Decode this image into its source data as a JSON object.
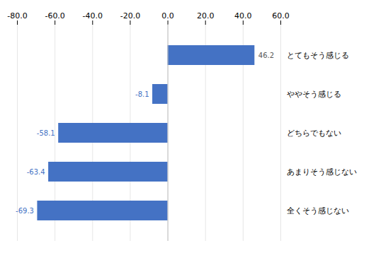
{
  "chart_data": {
    "type": "bar",
    "orientation": "horizontal",
    "categories": [
      "とてもそう感じる",
      "ややそう感じる",
      "どちらでもない",
      "あまりそう感じない",
      "全くそう感じない"
    ],
    "values": [
      46.2,
      -8.1,
      -58.1,
      -63.4,
      -69.3
    ],
    "color": "#4472C4",
    "xlim": [
      -80,
      60
    ],
    "xticks": [
      {
        "value": -80,
        "label": "-80.0"
      },
      {
        "value": -60,
        "label": "-60.0"
      },
      {
        "value": -40,
        "label": "-40.0"
      },
      {
        "value": -20,
        "label": "-20.0"
      },
      {
        "value": 0,
        "label": "0.0"
      },
      {
        "value": 20,
        "label": "20.0"
      },
      {
        "value": 40,
        "label": "40.0"
      },
      {
        "value": 60,
        "label": "60.0"
      }
    ],
    "grid": true,
    "data_labels": true
  }
}
